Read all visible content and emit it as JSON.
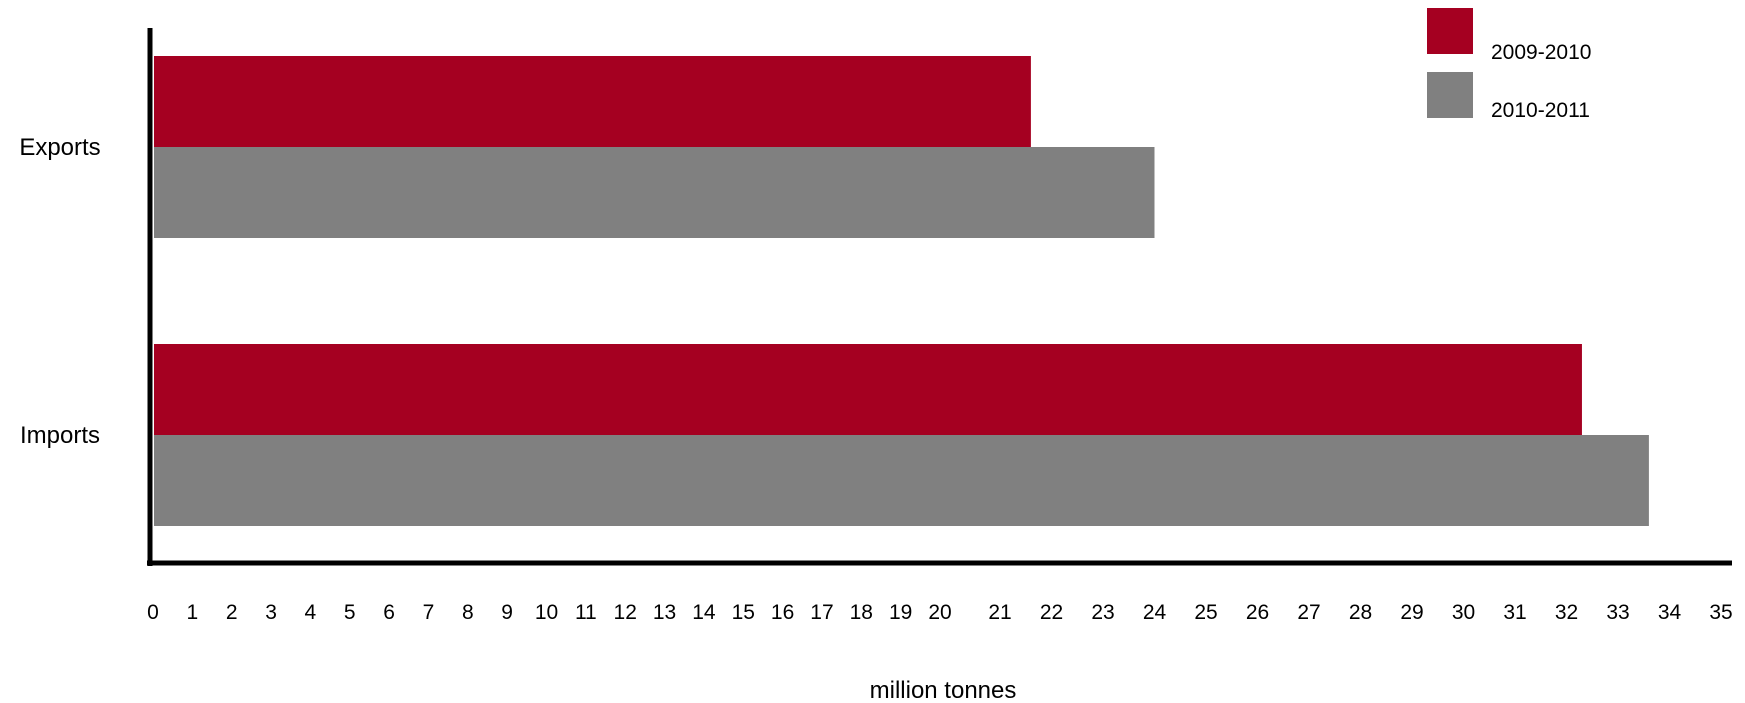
{
  "chart_data": {
    "type": "bar",
    "orientation": "horizontal",
    "categories": [
      "Exports",
      "Imports"
    ],
    "series": [
      {
        "name": "2009-2010",
        "color": "#a50021",
        "values": [
          21.6,
          32.3
        ]
      },
      {
        "name": "2010-2011",
        "color": "#808080",
        "values": [
          24.0,
          33.6
        ]
      }
    ],
    "xlabel": "million tonnes",
    "ylabel": "",
    "xlim": [
      0,
      35
    ],
    "x_ticks": [
      "0",
      "1",
      "2",
      "3",
      "4",
      "5",
      "6",
      "7",
      "8",
      "9",
      "10",
      "11",
      "12",
      "13",
      "14",
      "15",
      "16",
      "17",
      "18",
      "19",
      "20",
      "21",
      "22",
      "23",
      "24",
      "25",
      "26",
      "27",
      "28",
      "29",
      "30",
      "31",
      "32",
      "33",
      "34",
      "35"
    ],
    "grid": false,
    "legend_position": "top-right"
  }
}
